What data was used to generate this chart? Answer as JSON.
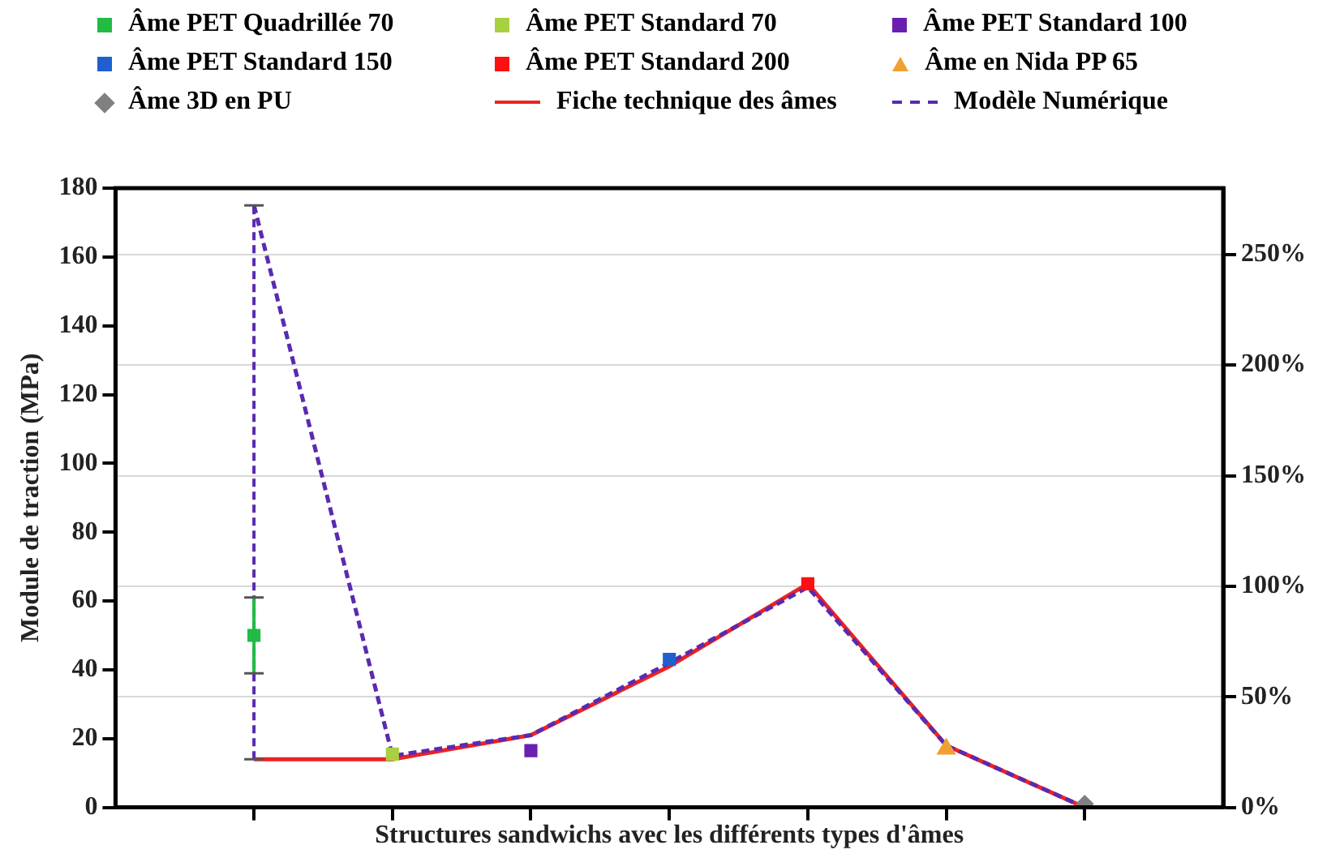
{
  "chart_data": {
    "type": "scatter",
    "xlabel": "Structures sandwichs avec les différents types d'âmes",
    "ylabel": "Module de traction (MPa)",
    "categories": [
      null,
      null,
      null,
      null,
      null,
      null,
      null
    ],
    "ylim": [
      0,
      180
    ],
    "yticks": [
      0,
      20,
      40,
      60,
      80,
      100,
      120,
      140,
      160,
      180
    ],
    "y2lim": [
      0,
      280
    ],
    "y2ticks": [
      {
        "value": 0,
        "label": "0%"
      },
      {
        "value": 50,
        "label": "50%"
      },
      {
        "value": 100,
        "label": "100%"
      },
      {
        "value": 150,
        "label": "150%"
      },
      {
        "value": 200,
        "label": "200%"
      },
      {
        "value": 250,
        "label": "250%"
      }
    ],
    "grid": "y2",
    "legend": "top",
    "tick_labels": "y",
    "series": [
      {
        "name": "Âme PET Quadrillée 70",
        "color": "#22bb44",
        "marker": "square",
        "values": [
          50,
          null,
          null,
          null,
          null,
          null,
          null
        ],
        "errors": [
          [
            39,
            61
          ],
          null,
          null,
          null,
          null,
          null,
          null
        ]
      },
      {
        "name": "Âme PET Standard 70",
        "color": "#a8d040",
        "marker": "square",
        "values": [
          null,
          15.5,
          null,
          null,
          null,
          null,
          null
        ]
      },
      {
        "name": "Âme PET Standard 100",
        "color": "#6a1fb0",
        "marker": "square",
        "values": [
          null,
          null,
          16.5,
          null,
          null,
          null,
          null
        ]
      },
      {
        "name": "Âme PET Standard 150",
        "color": "#1f5fd0",
        "marker": "square",
        "values": [
          null,
          null,
          null,
          43,
          null,
          null,
          null
        ]
      },
      {
        "name": "Âme PET Standard 200",
        "color": "#ff1010",
        "marker": "square",
        "values": [
          null,
          null,
          null,
          null,
          65,
          null,
          null
        ]
      },
      {
        "name": "Âme en Nida PP 65",
        "color": "#f0a030",
        "marker": "triangle",
        "values": [
          null,
          null,
          null,
          null,
          null,
          17,
          null
        ]
      },
      {
        "name": "Âme 3D en PU",
        "color": "#808080",
        "marker": "diamond",
        "values": [
          null,
          null,
          null,
          null,
          null,
          null,
          1
        ]
      },
      {
        "name": "Fiche technique des âmes",
        "type": "line",
        "color": "#ee2222",
        "marker": "none",
        "line_style": "solid",
        "values": [
          14,
          14,
          21,
          41,
          65,
          18,
          0
        ]
      },
      {
        "name": "Modèle Numérique",
        "type": "line",
        "color": "#5a2ab0",
        "marker": "none",
        "line_style": "dashed",
        "values": [
          175,
          15,
          21,
          42,
          64,
          18,
          0
        ],
        "errors": [
          [
            14,
            175
          ],
          null,
          null,
          null,
          null,
          null,
          null
        ]
      }
    ]
  }
}
